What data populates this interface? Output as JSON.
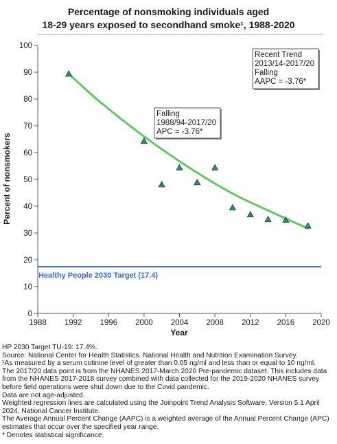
{
  "chart_data": {
    "type": "scatter",
    "title_line1": "Percentage of nonsmoking individuals aged",
    "title_line2": "18-29 years exposed to secondhand smoke¹, 1988-2020",
    "xlabel": "Year",
    "ylabel": "Percent of nonsmokers",
    "xlim": [
      1988,
      2020
    ],
    "ylim": [
      0,
      100
    ],
    "x_ticks": [
      1988,
      1992,
      1996,
      2000,
      2004,
      2008,
      2012,
      2016,
      2020
    ],
    "y_ticks": [
      0,
      10,
      20,
      30,
      40,
      50,
      60,
      70,
      80,
      90,
      100
    ],
    "grid": false,
    "points": [
      {
        "x": 1991.5,
        "y": 89.4
      },
      {
        "x": 2000,
        "y": 64.3
      },
      {
        "x": 2002,
        "y": 48.1
      },
      {
        "x": 2004,
        "y": 54.4
      },
      {
        "x": 2006,
        "y": 48.9
      },
      {
        "x": 2008,
        "y": 54.4
      },
      {
        "x": 2010,
        "y": 39.5
      },
      {
        "x": 2012,
        "y": 36.9
      },
      {
        "x": 2014,
        "y": 35.1
      },
      {
        "x": 2016,
        "y": 34.9
      },
      {
        "x": 2018.5,
        "y": 32.7
      }
    ],
    "trend_line": [
      {
        "x": 1991.5,
        "y": 89.4
      },
      {
        "x": 1995,
        "y": 79.0
      },
      {
        "x": 2000,
        "y": 66.0
      },
      {
        "x": 2005,
        "y": 54.6
      },
      {
        "x": 2010,
        "y": 44.7
      },
      {
        "x": 2015,
        "y": 36.9
      },
      {
        "x": 2018.5,
        "y": 31.7
      }
    ],
    "target": {
      "value": 17.4,
      "label": "Healthy People 2030 Target (17.4)"
    },
    "annotations": [
      {
        "lines": [
          "Falling",
          "1988/94-2017/20",
          "APC = -3.76*"
        ],
        "near": "middle"
      },
      {
        "lines": [
          "Recent Trend",
          "2013/14-2017/20",
          "Falling",
          "AAPC = -3.76*"
        ],
        "near": "top-right"
      }
    ],
    "colors": {
      "trend": "#5ecb5e",
      "marker_fill": "#2f8a73",
      "marker_stroke": "#1b4d40",
      "target": "#3366dd",
      "axis": "#555555"
    }
  },
  "footnotes": [
    "HP 2030 Target TU-19: 17.4%.",
    "Source: National Center for Health Statistics. National Health and Nutrition Examination Survey.",
    "¹As measured by a serum cotinine level of greater than 0.05 ng/ml and less than or equal to 10 ng/ml.",
    "The 2017/20 data point is from the NHANES 2017-March 2020 Pre-pandemic dataset. This includes data from the NHANES 2017-2018 survey combined with data collected for the 2019-2020 NHANES survey before field operations were shut down due to the Covid pandemic.",
    "Data are not age-adjusted.",
    "Weighted regression lines are calculated using the Joinpoint Trend Analysis Software, Version 5.1 April 2024, National Cancer Institute.",
    "The Average Annual Percent Change (AAPC) is a weighted average of the Annual Percent Change (APC) estimates that occur over the specified year range.",
    "* Denotes statistical significance."
  ]
}
